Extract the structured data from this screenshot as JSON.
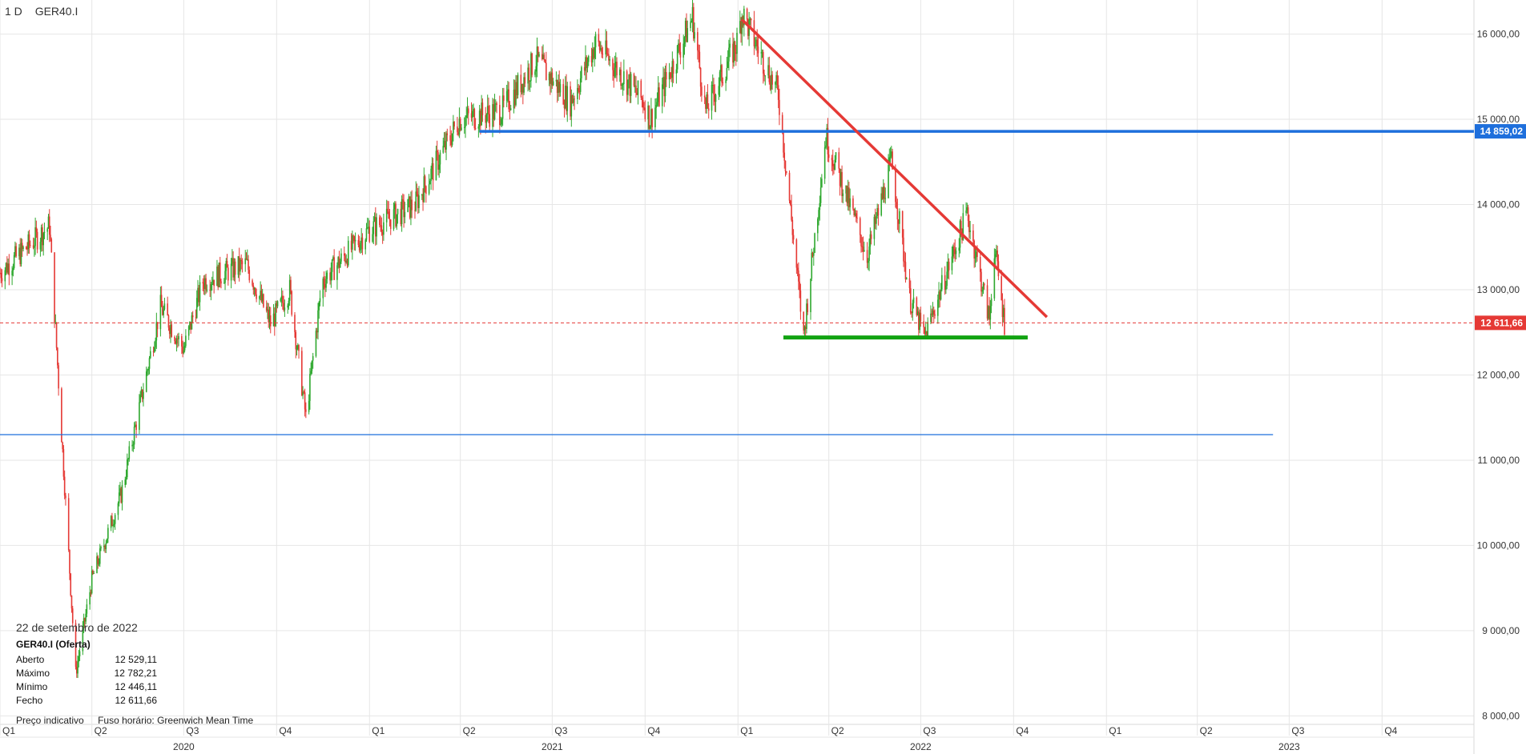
{
  "header": {
    "timeframe": "1 D",
    "symbol": "GER40.I"
  },
  "info": {
    "date": "22 de setembro de 2022",
    "instrument": "GER40.I (Oferta)",
    "rows": [
      {
        "label": "Aberto",
        "value": "12 529,11"
      },
      {
        "label": "Máximo",
        "value": "12 782,21"
      },
      {
        "label": "Mínimo",
        "value": "12 446,11"
      },
      {
        "label": "Fecho",
        "value": "12 611,66"
      }
    ]
  },
  "footer": {
    "price_type": "Preço indicativo",
    "timezone": "Fuso horário: Greenwich Mean Time"
  },
  "colors": {
    "up": "#2ea82e",
    "down": "#e53935",
    "blue_line": "#1e6fdc",
    "red_line": "#e53935",
    "green_line": "#12a312"
  },
  "chart_data": {
    "type": "candlestick",
    "ylim": [
      7900,
      16400
    ],
    "xlim": [
      "2020-01-01",
      "2023-12-31"
    ],
    "y_ticks": [
      "8 000,00",
      "9 000,00",
      "10 000,00",
      "11 000,00",
      "12 000,00",
      "13 000,00",
      "14 000,00",
      "15 000,00",
      "16 000,00"
    ],
    "y_tick_values": [
      8000,
      9000,
      10000,
      11000,
      12000,
      13000,
      14000,
      15000,
      16000
    ],
    "quarters": [
      {
        "label": "Q1",
        "date": "2020-01-01"
      },
      {
        "label": "Q2",
        "date": "2020-04-01"
      },
      {
        "label": "Q3",
        "date": "2020-07-01"
      },
      {
        "label": "Q4",
        "date": "2020-10-01"
      },
      {
        "label": "Q1",
        "date": "2021-01-01"
      },
      {
        "label": "Q2",
        "date": "2021-04-01"
      },
      {
        "label": "Q3",
        "date": "2021-07-01"
      },
      {
        "label": "Q4",
        "date": "2021-10-01"
      },
      {
        "label": "Q1",
        "date": "2022-01-01"
      },
      {
        "label": "Q2",
        "date": "2022-04-01"
      },
      {
        "label": "Q3",
        "date": "2022-07-01"
      },
      {
        "label": "Q4",
        "date": "2022-10-01"
      },
      {
        "label": "Q1",
        "date": "2023-01-01"
      },
      {
        "label": "Q2",
        "date": "2023-04-01"
      },
      {
        "label": "Q3",
        "date": "2023-07-01"
      },
      {
        "label": "Q4",
        "date": "2023-10-01"
      }
    ],
    "years": [
      {
        "label": "2020",
        "date": "2020-07-01"
      },
      {
        "label": "2021",
        "date": "2021-07-01"
      },
      {
        "label": "2022",
        "date": "2022-07-01"
      },
      {
        "label": "2023",
        "date": "2023-07-01"
      }
    ],
    "last_price": {
      "value": 12611.66,
      "label": "12 611,66"
    },
    "resistance": {
      "value": 14859.02,
      "label": "14 859,02",
      "from": "2021-04-20"
    },
    "support_low": {
      "value": 11300,
      "from": "2020-01-01",
      "to": "2023-06-15"
    },
    "downtrend": {
      "from": {
        "date": "2022-01-05",
        "value": 16170
      },
      "to": {
        "date": "2022-11-03",
        "value": 12680
      }
    },
    "support_green": {
      "value": 12440,
      "from": "2022-02-15",
      "to": "2022-10-15"
    },
    "price_path": [
      {
        "date": "2020-01-01",
        "value": 13200
      },
      {
        "date": "2020-02-19",
        "value": 13750
      },
      {
        "date": "2020-03-02",
        "value": 11300
      },
      {
        "date": "2020-03-16",
        "value": 8500
      },
      {
        "date": "2020-04-01",
        "value": 9600
      },
      {
        "date": "2020-04-30",
        "value": 10600
      },
      {
        "date": "2020-06-08",
        "value": 12800
      },
      {
        "date": "2020-07-01",
        "value": 12300
      },
      {
        "date": "2020-07-20",
        "value": 13100
      },
      {
        "date": "2020-09-01",
        "value": 13300
      },
      {
        "date": "2020-09-25",
        "value": 12600
      },
      {
        "date": "2020-10-14",
        "value": 13000
      },
      {
        "date": "2020-10-30",
        "value": 11500
      },
      {
        "date": "2020-11-15",
        "value": 13100
      },
      {
        "date": "2020-12-31",
        "value": 13700
      },
      {
        "date": "2021-02-15",
        "value": 14000
      },
      {
        "date": "2021-03-31",
        "value": 15000
      },
      {
        "date": "2021-05-12",
        "value": 15100
      },
      {
        "date": "2021-06-15",
        "value": 15700
      },
      {
        "date": "2021-07-19",
        "value": 15200
      },
      {
        "date": "2021-08-13",
        "value": 15900
      },
      {
        "date": "2021-09-30",
        "value": 15200
      },
      {
        "date": "2021-10-06",
        "value": 15000
      },
      {
        "date": "2021-11-17",
        "value": 16200
      },
      {
        "date": "2021-11-30",
        "value": 15100
      },
      {
        "date": "2021-12-31",
        "value": 15900
      },
      {
        "date": "2022-01-05",
        "value": 16250
      },
      {
        "date": "2022-02-10",
        "value": 15300
      },
      {
        "date": "2022-03-07",
        "value": 12450
      },
      {
        "date": "2022-03-29",
        "value": 14800
      },
      {
        "date": "2022-05-09",
        "value": 13400
      },
      {
        "date": "2022-06-02",
        "value": 14500
      },
      {
        "date": "2022-06-20",
        "value": 12900
      },
      {
        "date": "2022-07-05",
        "value": 12450
      },
      {
        "date": "2022-08-16",
        "value": 13900
      },
      {
        "date": "2022-09-07",
        "value": 12650
      },
      {
        "date": "2022-09-12",
        "value": 13500
      },
      {
        "date": "2022-09-22",
        "value": 12611
      }
    ]
  }
}
